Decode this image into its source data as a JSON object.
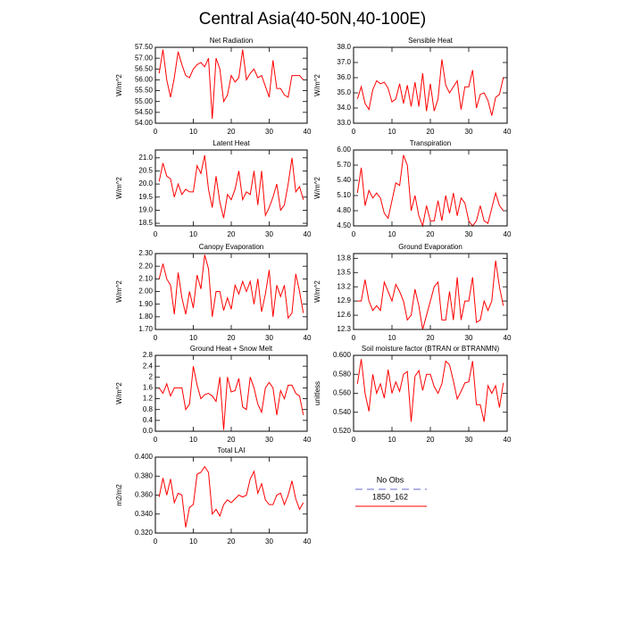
{
  "title": "Central Asia(40-50N,40-100E)",
  "legend": [
    {
      "name": "No Obs",
      "color": "#9a9ae0",
      "dash": true
    },
    {
      "name": "1850_162",
      "color": "#ff0000"
    }
  ],
  "chart_data": [
    {
      "type": "line",
      "title": "Net Radiation",
      "ylabel": "W/m^2",
      "color": "#ff0000",
      "xlim": [
        0,
        40
      ],
      "xticks": [
        0,
        10,
        20,
        30,
        40
      ],
      "ylim": [
        54,
        57.5
      ],
      "yticks": [
        {
          "value": 54,
          "label": "54.00"
        },
        {
          "value": 54.5,
          "label": "54.50"
        },
        {
          "value": 55,
          "label": "55.00"
        },
        {
          "value": 55.5,
          "label": "55.50"
        },
        {
          "value": 56,
          "label": "56.00"
        },
        {
          "value": 56.5,
          "label": "56.50"
        },
        {
          "value": 57,
          "label": "57.00"
        },
        {
          "value": 57.5,
          "label": "57.50"
        }
      ],
      "x": [
        1,
        2,
        3,
        4,
        5,
        6,
        7,
        8,
        9,
        10,
        11,
        12,
        13,
        14,
        15,
        16,
        17,
        18,
        19,
        20,
        21,
        22,
        23,
        24,
        25,
        26,
        27,
        28,
        29,
        30,
        31,
        32,
        33,
        34,
        35,
        36,
        37,
        38,
        39
      ],
      "values": [
        56.3,
        57.4,
        56.0,
        55.2,
        56.1,
        57.3,
        56.7,
        56.2,
        56.1,
        56.5,
        56.7,
        56.8,
        56.6,
        57.0,
        54.2,
        57.0,
        56.5,
        55.0,
        55.3,
        56.2,
        55.9,
        56.1,
        57.4,
        56.0,
        56.3,
        56.5,
        56.1,
        56.2,
        55.7,
        55.2,
        56.9,
        55.6,
        55.6,
        55.3,
        55.2,
        56.2,
        56.2,
        56.2,
        56.0
      ]
    },
    {
      "type": "line",
      "title": "Sensible Heat",
      "ylabel": "W/m^2",
      "color": "#ff0000",
      "xlim": [
        0,
        40
      ],
      "xticks": [
        0,
        10,
        20,
        30,
        40
      ],
      "ylim": [
        33,
        38
      ],
      "yticks": [
        {
          "value": 33,
          "label": "33.0"
        },
        {
          "value": 34,
          "label": "34.0"
        },
        {
          "value": 35,
          "label": "35.0"
        },
        {
          "value": 36,
          "label": "36.0"
        },
        {
          "value": 37,
          "label": "37.0"
        },
        {
          "value": 38,
          "label": "38.0"
        }
      ],
      "x": [
        1,
        2,
        3,
        4,
        5,
        6,
        7,
        8,
        9,
        10,
        11,
        12,
        13,
        14,
        15,
        16,
        17,
        18,
        19,
        20,
        21,
        22,
        23,
        24,
        25,
        26,
        27,
        28,
        29,
        30,
        31,
        32,
        33,
        34,
        35,
        36,
        37,
        38,
        39
      ],
      "values": [
        34.6,
        35.4,
        34.3,
        33.9,
        35.2,
        35.8,
        35.6,
        35.7,
        35.3,
        34.4,
        34.6,
        35.6,
        34.3,
        35.5,
        34.1,
        35.7,
        34.1,
        36.3,
        33.8,
        35.6,
        33.8,
        34.6,
        37.2,
        35.5,
        35.0,
        35.4,
        35.8,
        33.9,
        35.4,
        35.4,
        36.5,
        34.0,
        34.9,
        35.0,
        34.5,
        33.5,
        34.7,
        34.9,
        36.0
      ]
    },
    {
      "type": "line",
      "title": "Latent Heat",
      "ylabel": "W/m^2",
      "color": "#ff0000",
      "xlim": [
        0,
        40
      ],
      "xticks": [
        0,
        10,
        20,
        30,
        40
      ],
      "ylim": [
        18.4,
        21.3
      ],
      "yticks": [
        {
          "value": 18.5,
          "label": "18.5"
        },
        {
          "value": 19,
          "label": "19.0"
        },
        {
          "value": 19.5,
          "label": "19.5"
        },
        {
          "value": 20,
          "label": "20.0"
        },
        {
          "value": 20.5,
          "label": "20.5"
        },
        {
          "value": 21,
          "label": "21.0"
        }
      ],
      "x": [
        1,
        2,
        3,
        4,
        5,
        6,
        7,
        8,
        9,
        10,
        11,
        12,
        13,
        14,
        15,
        16,
        17,
        18,
        19,
        20,
        21,
        22,
        23,
        24,
        25,
        26,
        27,
        28,
        29,
        30,
        31,
        32,
        33,
        34,
        35,
        36,
        37,
        38,
        39
      ],
      "values": [
        20.1,
        20.8,
        20.3,
        20.2,
        19.5,
        20.0,
        19.6,
        19.8,
        19.7,
        19.7,
        20.7,
        20.4,
        21.1,
        19.8,
        19.1,
        20.3,
        19.3,
        18.7,
        19.6,
        19.4,
        19.8,
        20.5,
        19.4,
        19.7,
        19.6,
        20.5,
        19.2,
        20.5,
        18.8,
        19.1,
        19.5,
        20.0,
        19.0,
        19.2,
        20.0,
        21.0,
        19.7,
        19.9,
        19.4
      ]
    },
    {
      "type": "line",
      "title": "Transpiration",
      "ylabel": "W/m^2",
      "color": "#ff0000",
      "xlim": [
        0,
        40
      ],
      "xticks": [
        0,
        10,
        20,
        30,
        40
      ],
      "ylim": [
        4.5,
        6.0
      ],
      "yticks": [
        {
          "value": 4.5,
          "label": "4.50"
        },
        {
          "value": 4.8,
          "label": "4.80"
        },
        {
          "value": 5.1,
          "label": "5.10"
        },
        {
          "value": 5.4,
          "label": "5.40"
        },
        {
          "value": 5.7,
          "label": "5.70"
        },
        {
          "value": 6,
          "label": "6.00"
        }
      ],
      "x": [
        1,
        2,
        3,
        4,
        5,
        6,
        7,
        8,
        9,
        10,
        11,
        12,
        13,
        14,
        15,
        16,
        17,
        18,
        19,
        20,
        21,
        22,
        23,
        24,
        25,
        26,
        27,
        28,
        29,
        30,
        31,
        32,
        33,
        34,
        35,
        36,
        37,
        38,
        39
      ],
      "values": [
        5.15,
        5.65,
        4.9,
        5.2,
        5.05,
        5.15,
        5.05,
        4.75,
        4.65,
        5.0,
        5.35,
        5.3,
        5.9,
        5.7,
        4.8,
        5.1,
        4.7,
        4.5,
        4.9,
        4.6,
        4.6,
        5.0,
        4.6,
        5.1,
        4.75,
        5.15,
        4.7,
        5.05,
        4.95,
        4.6,
        4.5,
        4.6,
        4.9,
        4.6,
        4.55,
        4.85,
        5.15,
        4.9,
        4.8
      ]
    },
    {
      "type": "line",
      "title": "Canopy Evaporation",
      "ylabel": "W/m^2",
      "color": "#ff0000",
      "xlim": [
        0,
        40
      ],
      "xticks": [
        0,
        10,
        20,
        30,
        40
      ],
      "ylim": [
        1.7,
        2.3
      ],
      "yticks": [
        {
          "value": 1.7,
          "label": "1.70"
        },
        {
          "value": 1.8,
          "label": "1.80"
        },
        {
          "value": 1.9,
          "label": "1.90"
        },
        {
          "value": 2.0,
          "label": "2.00"
        },
        {
          "value": 2.1,
          "label": "2.10"
        },
        {
          "value": 2.2,
          "label": "2.20"
        },
        {
          "value": 2.3,
          "label": "2.30"
        }
      ],
      "x": [
        1,
        2,
        3,
        4,
        5,
        6,
        7,
        8,
        9,
        10,
        11,
        12,
        13,
        14,
        15,
        16,
        17,
        18,
        19,
        20,
        21,
        22,
        23,
        24,
        25,
        26,
        27,
        28,
        29,
        30,
        31,
        32,
        33,
        34,
        35,
        36,
        37,
        38,
        39
      ],
      "values": [
        2.1,
        2.22,
        2.1,
        2.05,
        1.82,
        2.15,
        1.95,
        1.82,
        2.0,
        1.87,
        2.13,
        2.02,
        2.29,
        2.18,
        1.8,
        2.0,
        2.0,
        1.85,
        1.95,
        1.86,
        2.05,
        1.98,
        2.08,
        2.0,
        2.08,
        1.9,
        2.1,
        1.84,
        1.98,
        2.17,
        1.8,
        2.05,
        1.96,
        2.05,
        1.79,
        1.83,
        2.14,
        2.0,
        1.83
      ]
    },
    {
      "type": "line",
      "title": "Ground Evaporation",
      "ylabel": "W/m^2",
      "color": "#ff0000",
      "xlim": [
        0,
        40
      ],
      "xticks": [
        0,
        10,
        20,
        30,
        40
      ],
      "ylim": [
        12.3,
        13.9
      ],
      "yticks": [
        12.3,
        12.6,
        12.9,
        13.2,
        13.5,
        13.8
      ],
      "x": [
        1,
        2,
        3,
        4,
        5,
        6,
        7,
        8,
        9,
        10,
        11,
        12,
        13,
        14,
        15,
        16,
        17,
        18,
        19,
        20,
        21,
        22,
        23,
        24,
        25,
        26,
        27,
        28,
        29,
        30,
        31,
        32,
        33,
        34,
        35,
        36,
        37,
        38,
        39
      ],
      "values": [
        12.9,
        12.9,
        13.35,
        12.9,
        12.7,
        12.8,
        12.7,
        13.3,
        13.1,
        12.9,
        13.25,
        13.1,
        12.9,
        12.5,
        12.6,
        13.15,
        12.8,
        12.3,
        12.6,
        12.9,
        13.2,
        13.3,
        12.5,
        12.5,
        13.1,
        12.5,
        13.4,
        12.5,
        12.9,
        12.9,
        13.4,
        12.45,
        12.5,
        12.9,
        12.7,
        12.9,
        13.75,
        13.2,
        12.8
      ]
    },
    {
      "type": "line",
      "title": "Ground Heat + Snow Melt",
      "ylabel": "W/m^2",
      "color": "#ff0000",
      "xlim": [
        0,
        40
      ],
      "xticks": [
        0,
        10,
        20,
        30,
        40
      ],
      "ylim": [
        0,
        2.8
      ],
      "yticks": [
        {
          "value": 0,
          "label": "0.0"
        },
        0.4,
        0.8,
        1.2,
        1.6,
        2.0,
        2.4,
        2.8
      ],
      "x": [
        1,
        2,
        3,
        4,
        5,
        6,
        7,
        8,
        9,
        10,
        11,
        12,
        13,
        14,
        15,
        16,
        17,
        18,
        19,
        20,
        21,
        22,
        23,
        24,
        25,
        26,
        27,
        28,
        29,
        30,
        31,
        32,
        33,
        34,
        35,
        36,
        37,
        38,
        39
      ],
      "values": [
        1.6,
        1.4,
        1.75,
        1.3,
        1.6,
        1.6,
        1.6,
        0.8,
        1.0,
        2.4,
        1.7,
        1.2,
        1.35,
        1.4,
        1.3,
        1.1,
        2.0,
        0.05,
        2.0,
        1.45,
        1.5,
        1.95,
        0.9,
        0.8,
        2.0,
        1.6,
        1.0,
        0.7,
        1.6,
        1.8,
        1.6,
        0.6,
        1.5,
        1.2,
        1.7,
        1.7,
        1.4,
        1.3,
        0.6
      ]
    },
    {
      "type": "line",
      "title": "Soil moisture factor (BTRAN or BTRANMN)",
      "ylabel": "unitless",
      "color": "#ff0000",
      "xlim": [
        0,
        40
      ],
      "xticks": [
        0,
        10,
        20,
        30,
        40
      ],
      "ylim": [
        0.52,
        0.6
      ],
      "yticks": [
        {
          "value": 0.52,
          "label": "0.520"
        },
        {
          "value": 0.54,
          "label": "0.540"
        },
        {
          "value": 0.56,
          "label": "0.560"
        },
        {
          "value": 0.58,
          "label": "0.580"
        },
        {
          "value": 0.6,
          "label": "0.600"
        }
      ],
      "x": [
        1,
        2,
        3,
        4,
        5,
        6,
        7,
        8,
        9,
        10,
        11,
        12,
        13,
        14,
        15,
        16,
        17,
        18,
        19,
        20,
        21,
        22,
        23,
        24,
        25,
        26,
        27,
        28,
        29,
        30,
        31,
        32,
        33,
        34,
        35,
        36,
        37,
        38,
        39
      ],
      "values": [
        0.57,
        0.596,
        0.56,
        0.541,
        0.58,
        0.56,
        0.57,
        0.555,
        0.585,
        0.56,
        0.572,
        0.562,
        0.58,
        0.583,
        0.53,
        0.578,
        0.584,
        0.563,
        0.58,
        0.58,
        0.567,
        0.56,
        0.57,
        0.594,
        0.59,
        0.573,
        0.554,
        0.562,
        0.571,
        0.572,
        0.594,
        0.548,
        0.548,
        0.53,
        0.568,
        0.56,
        0.568,
        0.545,
        0.571
      ]
    },
    {
      "type": "line",
      "title": "Total LAI",
      "ylabel": "m2/m2",
      "color": "#ff0000",
      "xlim": [
        0,
        40
      ],
      "xticks": [
        0,
        10,
        20,
        30,
        40
      ],
      "ylim": [
        0.32,
        0.4
      ],
      "yticks": [
        {
          "value": 0.32,
          "label": "0.320"
        },
        {
          "value": 0.34,
          "label": "0.340"
        },
        {
          "value": 0.36,
          "label": "0.360"
        },
        {
          "value": 0.38,
          "label": "0.380"
        },
        {
          "value": 0.4,
          "label": "0.400"
        }
      ],
      "x": [
        1,
        2,
        3,
        4,
        5,
        6,
        7,
        8,
        9,
        10,
        11,
        12,
        13,
        14,
        15,
        16,
        17,
        18,
        19,
        20,
        21,
        22,
        23,
        24,
        25,
        26,
        27,
        28,
        29,
        30,
        31,
        32,
        33,
        34,
        35,
        36,
        37,
        38,
        39
      ],
      "values": [
        0.358,
        0.378,
        0.36,
        0.377,
        0.352,
        0.362,
        0.36,
        0.326,
        0.347,
        0.35,
        0.382,
        0.384,
        0.39,
        0.384,
        0.34,
        0.345,
        0.338,
        0.35,
        0.355,
        0.352,
        0.356,
        0.36,
        0.358,
        0.36,
        0.377,
        0.385,
        0.362,
        0.372,
        0.355,
        0.35,
        0.35,
        0.36,
        0.362,
        0.35,
        0.36,
        0.375,
        0.356,
        0.345,
        0.352
      ]
    }
  ]
}
